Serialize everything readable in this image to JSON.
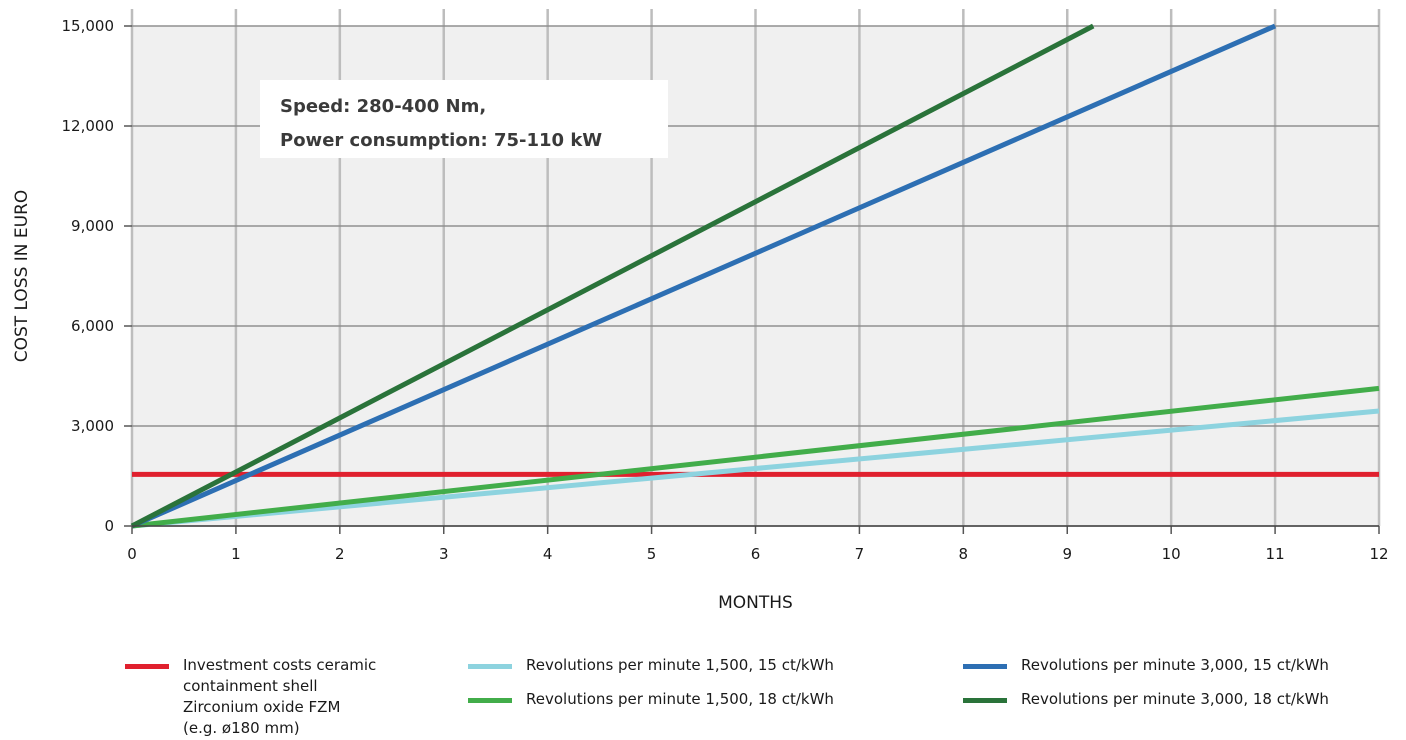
{
  "chart_data": {
    "type": "line",
    "xlabel": "MONTHS",
    "ylabel": "COST LOSS IN EURO",
    "xlim": [
      0,
      12
    ],
    "ylim": [
      0,
      15000
    ],
    "xticks": [
      "0",
      "1",
      "2",
      "3",
      "4",
      "5",
      "6",
      "7",
      "8",
      "9",
      "10",
      "11",
      "12"
    ],
    "yticks": [
      "0",
      "3,000",
      "6,000",
      "9,000",
      "12,000",
      "15,000"
    ],
    "grid": true,
    "annotation": [
      "Speed: 280-400 Nm,",
      "Power consumption: 75-110 kW"
    ],
    "legend_position": "bottom",
    "series": [
      {
        "key": "investment",
        "name": "Investment costs ceramic\ncontainment shell\nZirconium oxide FZM\n(e.g. ø180 mm)",
        "color": "#e0202e",
        "x": [
          0,
          12
        ],
        "y": [
          1550,
          1550
        ]
      },
      {
        "key": "rpm1500_15",
        "name": "Revolutions per minute 1,500, 15 ct/kWh",
        "color": "#8dd3df",
        "x": [
          0,
          12
        ],
        "y": [
          0,
          3450
        ]
      },
      {
        "key": "rpm1500_18",
        "name": "Revolutions per minute 1,500, 18 ct/kWh",
        "color": "#42ad4a",
        "x": [
          0,
          12
        ],
        "y": [
          0,
          4130
        ]
      },
      {
        "key": "rpm3000_15",
        "name": "Revolutions per minute 3,000, 15 ct/kWh",
        "color": "#2d6fb3",
        "x": [
          0,
          11
        ],
        "y": [
          0,
          15000
        ]
      },
      {
        "key": "rpm3000_18",
        "name": "Revolutions per minute 3,000, 18 ct/kWh",
        "color": "#2a733a",
        "x": [
          0,
          9.25
        ],
        "y": [
          0,
          15000
        ]
      }
    ]
  }
}
